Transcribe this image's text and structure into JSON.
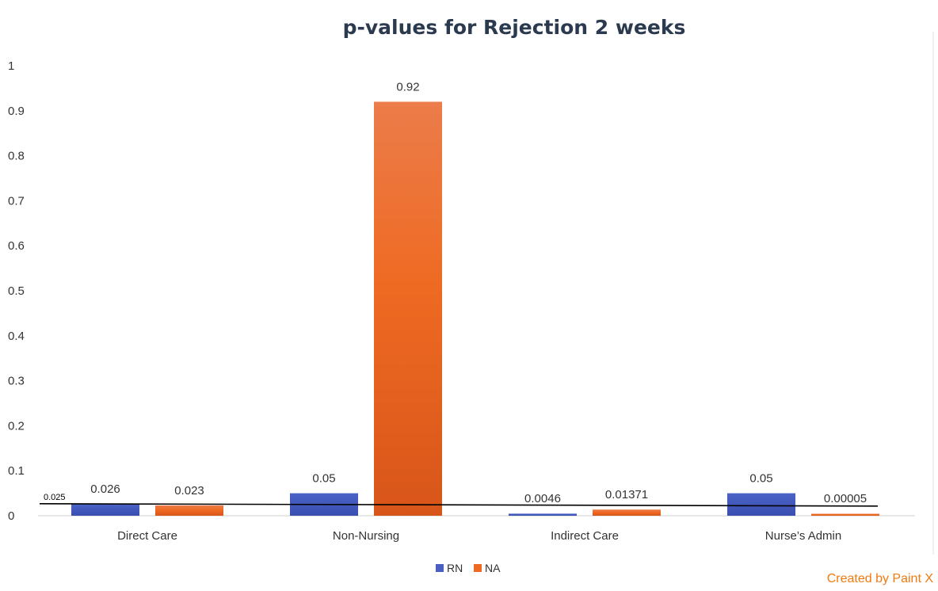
{
  "chart_data": {
    "type": "bar",
    "title": "p-values for Rejection  2 weeks",
    "categories": [
      "Direct Care",
      "Non-Nursing",
      "Indirect Care",
      "Nurse’s Admin"
    ],
    "series": [
      {
        "name": "RN",
        "values": [
          0.026,
          0.05,
          0.0046,
          0.05
        ],
        "labels": [
          "0.026",
          "0.05",
          "0.0046",
          "0.05"
        ],
        "color": "#4a5fc1"
      },
      {
        "name": "NA",
        "values": [
          0.023,
          0.92,
          0.01371,
          5e-05
        ],
        "labels": [
          "0.023",
          "0.92",
          "0.01371",
          "0.00005"
        ],
        "color": "#ee6a22"
      }
    ],
    "yticks": [
      "0",
      "0.1",
      "0.2",
      "0.3",
      "0.4",
      "0.5",
      "0.6",
      "0.7",
      "0.8",
      "0.9",
      "1"
    ],
    "ylim": [
      0,
      1
    ],
    "reference_line": {
      "value": 0.025,
      "label": "0.025"
    },
    "legend_position": "bottom",
    "grid": false
  },
  "watermark": "Created by Paint X"
}
